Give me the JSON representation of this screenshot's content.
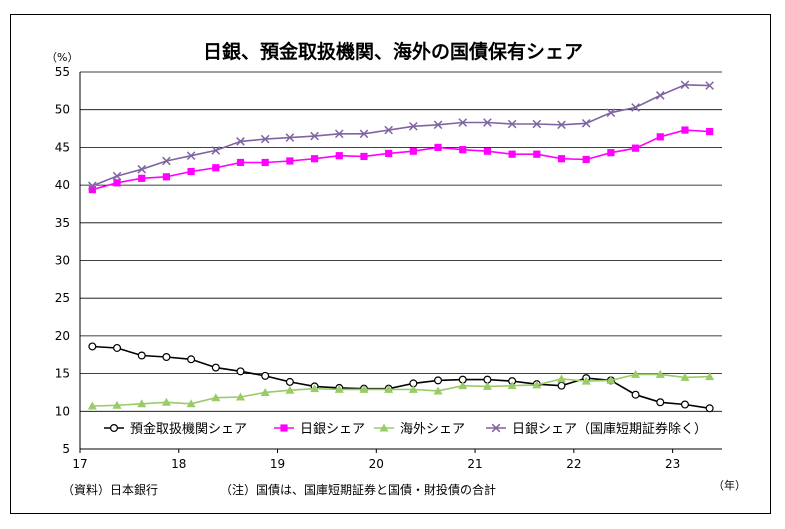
{
  "chart_data": {
    "type": "line",
    "title": "日銀、預金取扱機関、海外の国債保有シェア",
    "ylabel": "（%）",
    "xlabel": "（年）",
    "ylim": [
      5,
      55
    ],
    "yticks": [
      5,
      10,
      15,
      20,
      25,
      30,
      35,
      40,
      45,
      50,
      55
    ],
    "x_tick_labels": [
      "17",
      "18",
      "19",
      "20",
      "21",
      "22",
      "23"
    ],
    "x_range": [
      0,
      26
    ],
    "x_tick_positions": [
      0,
      4,
      8,
      12,
      16,
      20,
      24
    ],
    "grid": "horizontal",
    "legend_position": "bottom-inside",
    "series": [
      {
        "name": "預金取扱機関シェア",
        "marker": "circle-open",
        "color": "#000000",
        "values": [
          18.6,
          18.4,
          17.4,
          17.2,
          16.9,
          15.8,
          15.3,
          14.7,
          13.9,
          13.3,
          13.1,
          13.0,
          13.0,
          13.7,
          14.1,
          14.2,
          14.2,
          14.0,
          13.6,
          13.4,
          14.4,
          14.1,
          12.2,
          11.2,
          10.9,
          10.4
        ]
      },
      {
        "name": "日銀シェア",
        "marker": "square",
        "color": "#ff00ff",
        "values": [
          39.4,
          40.3,
          40.9,
          41.1,
          41.8,
          42.3,
          43.0,
          43.0,
          43.2,
          43.5,
          43.9,
          43.8,
          44.2,
          44.5,
          45.0,
          44.7,
          44.5,
          44.1,
          44.1,
          43.5,
          43.4,
          44.3,
          44.9,
          46.4,
          47.3,
          47.1
        ]
      },
      {
        "name": "海外シェア",
        "marker": "triangle",
        "color": "#99cc66",
        "values": [
          10.7,
          10.8,
          11.0,
          11.2,
          11.0,
          11.8,
          11.9,
          12.5,
          12.8,
          13.0,
          12.9,
          12.9,
          12.9,
          12.9,
          12.7,
          13.4,
          13.3,
          13.4,
          13.5,
          14.3,
          14.0,
          14.1,
          14.9,
          14.9,
          14.5,
          14.6
        ]
      },
      {
        "name": "日銀シェア（国庫短期証券除く）",
        "marker": "x",
        "color": "#8064a2",
        "values": [
          39.9,
          41.2,
          42.1,
          43.2,
          43.9,
          44.6,
          45.8,
          46.1,
          46.3,
          46.5,
          46.8,
          46.8,
          47.3,
          47.8,
          48.0,
          48.3,
          48.3,
          48.1,
          48.1,
          48.0,
          48.2,
          49.6,
          50.3,
          51.9,
          53.3,
          53.2
        ]
      }
    ]
  },
  "footnotes": {
    "source": "（資料）日本銀行",
    "note": "（注）国債は、国庫短期証券と国債・財投債の合計"
  }
}
